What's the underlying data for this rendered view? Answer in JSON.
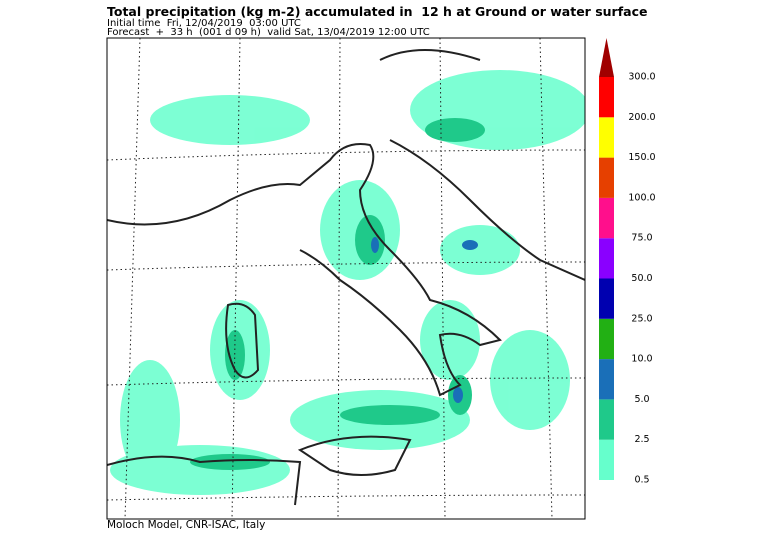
{
  "header": {
    "title": "Total precipitation (kg m-2) accumulated in  12 h at Ground or water surface",
    "initial_time": "Initial time  Fri, 12/04/2019  03:00 UTC",
    "forecast": "Forecast  +  33 h  (001 d 09 h)  valid Sat, 13/04/2019 12:00 UTC"
  },
  "colorbar": {
    "levels": [
      {
        "value": 0.5,
        "label": "0.5"
      },
      {
        "value": 2.5,
        "label": "2.5"
      },
      {
        "value": 5,
        "label": "5.0"
      },
      {
        "value": 10,
        "label": "10.0"
      },
      {
        "value": 25,
        "label": "25.0"
      },
      {
        "value": 50,
        "label": "50.0"
      },
      {
        "value": 75,
        "label": "75.0"
      },
      {
        "value": 100,
        "label": "100.0"
      },
      {
        "value": 150,
        "label": "150.0"
      },
      {
        "value": 200,
        "label": "200.0"
      },
      {
        "value": 300,
        "label": "300.0"
      }
    ],
    "colors": [
      "#66ffcc",
      "#1fc98a",
      "#1a6fb8",
      "#22b014",
      "#0000b0",
      "#8a00ff",
      "#ff0f8c",
      "#e64000",
      "#ffff00",
      "#ff0000",
      "#a00000"
    ]
  },
  "footer": "Moloch Model, CNR-ISAC, Italy"
}
